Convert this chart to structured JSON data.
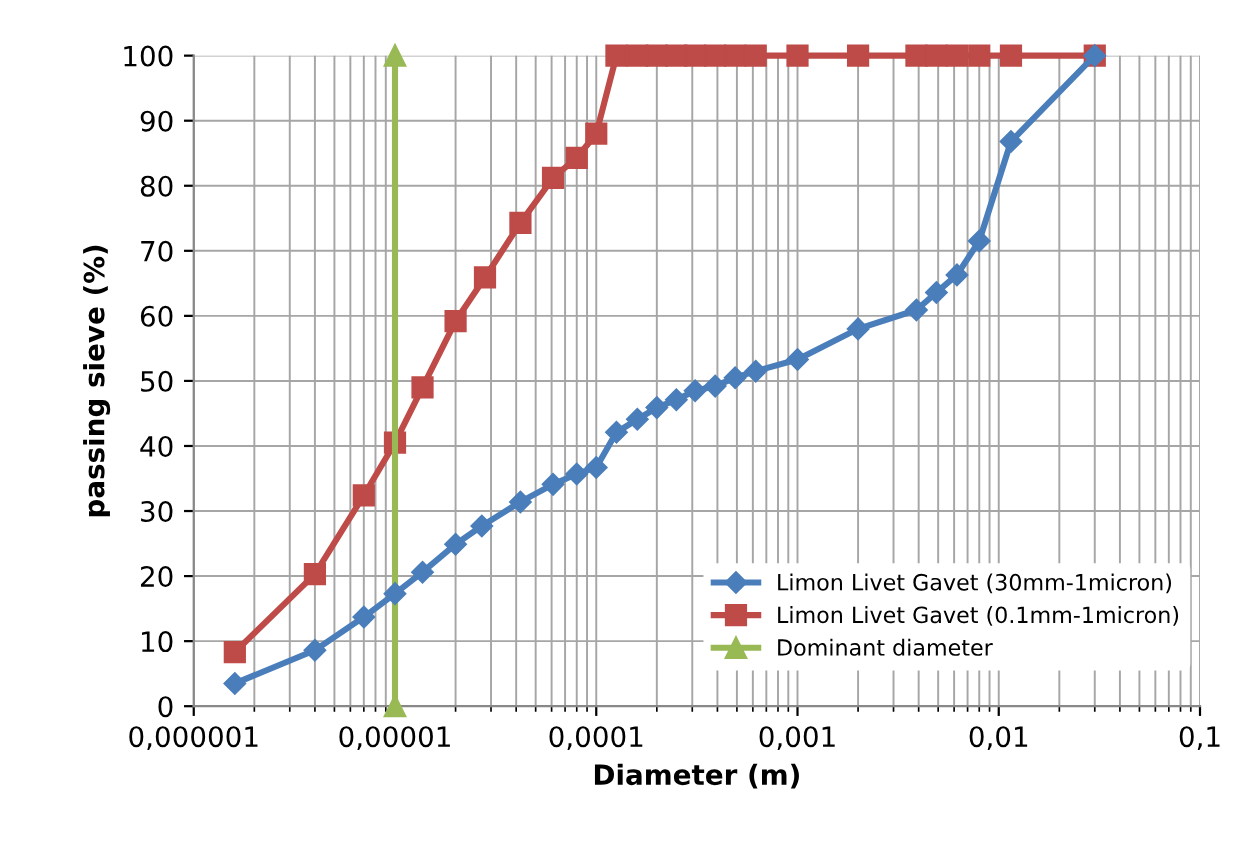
{
  "chart_data": {
    "type": "line",
    "xlabel": "Diameter (m)",
    "ylabel": "passing sieve (%)",
    "log": "x",
    "xlim": [
      1e-06,
      0.1
    ],
    "xticks": [
      {
        "value": 1e-06,
        "label": "0,000001"
      },
      {
        "value": 1e-05,
        "label": "0,00001"
      },
      {
        "value": 0.0001,
        "label": "0,0001"
      },
      {
        "value": 0.001,
        "label": "0,001"
      },
      {
        "value": 0.01,
        "label": "0,01"
      },
      {
        "value": 0.1,
        "label": "0,1"
      }
    ],
    "ylim": [
      0,
      100
    ],
    "yticks": [
      0,
      10,
      20,
      30,
      40,
      50,
      60,
      70,
      80,
      90,
      100
    ],
    "grid": true,
    "legend": "bottom right",
    "line_style": "solid",
    "series": [
      {
        "name": "Limon Livet Gavet (30mm-1micron)",
        "color": "#4a7ebb",
        "marker": "diamond",
        "x": [
          1.6e-06,
          4e-06,
          7e-06,
          1e-05,
          1.37e-05,
          2e-05,
          2.7e-05,
          4.2e-05,
          6.1e-05,
          8e-05,
          0.0001,
          0.000126,
          0.00016,
          0.0002,
          0.00025,
          0.00031,
          0.00039,
          0.00049,
          0.00062,
          0.001,
          0.002,
          0.0039,
          0.0049,
          0.0062,
          0.008,
          0.0115,
          0.03
        ],
        "values": [
          3.5,
          8.6,
          13.7,
          17.3,
          20.6,
          24.9,
          27.7,
          31.4,
          34.1,
          35.7,
          36.7,
          42.1,
          44.1,
          45.9,
          47.1,
          48.5,
          49.2,
          50.5,
          51.5,
          53.3,
          58.0,
          60.9,
          63.6,
          66.3,
          71.5,
          86.8,
          100
        ]
      },
      {
        "name": "Limon Livet Gavet (0.1mm-1micron)",
        "color": "#be4b48",
        "marker": "square",
        "x": [
          1.6e-06,
          4e-06,
          7e-06,
          1e-05,
          1.37e-05,
          2e-05,
          2.8e-05,
          4.2e-05,
          6.1e-05,
          8e-05,
          0.0001,
          0.000126,
          0.00016,
          0.0002,
          0.00025,
          0.00031,
          0.00039,
          0.00049,
          0.00062,
          0.001,
          0.002,
          0.0039,
          0.0049,
          0.0062,
          0.008,
          0.0115,
          0.03
        ],
        "values": [
          8.3,
          20.3,
          32.4,
          40.5,
          49.0,
          59.2,
          65.9,
          74.3,
          81.2,
          84.3,
          88.0,
          100,
          100,
          100,
          100,
          100,
          100,
          100,
          100,
          100,
          100,
          100,
          100,
          100,
          100,
          100,
          100
        ]
      },
      {
        "name": "Dominant diameter",
        "color": "#98b954",
        "marker": "triangle",
        "x": [
          1e-05,
          1e-05
        ],
        "values": [
          0,
          100
        ]
      }
    ]
  }
}
